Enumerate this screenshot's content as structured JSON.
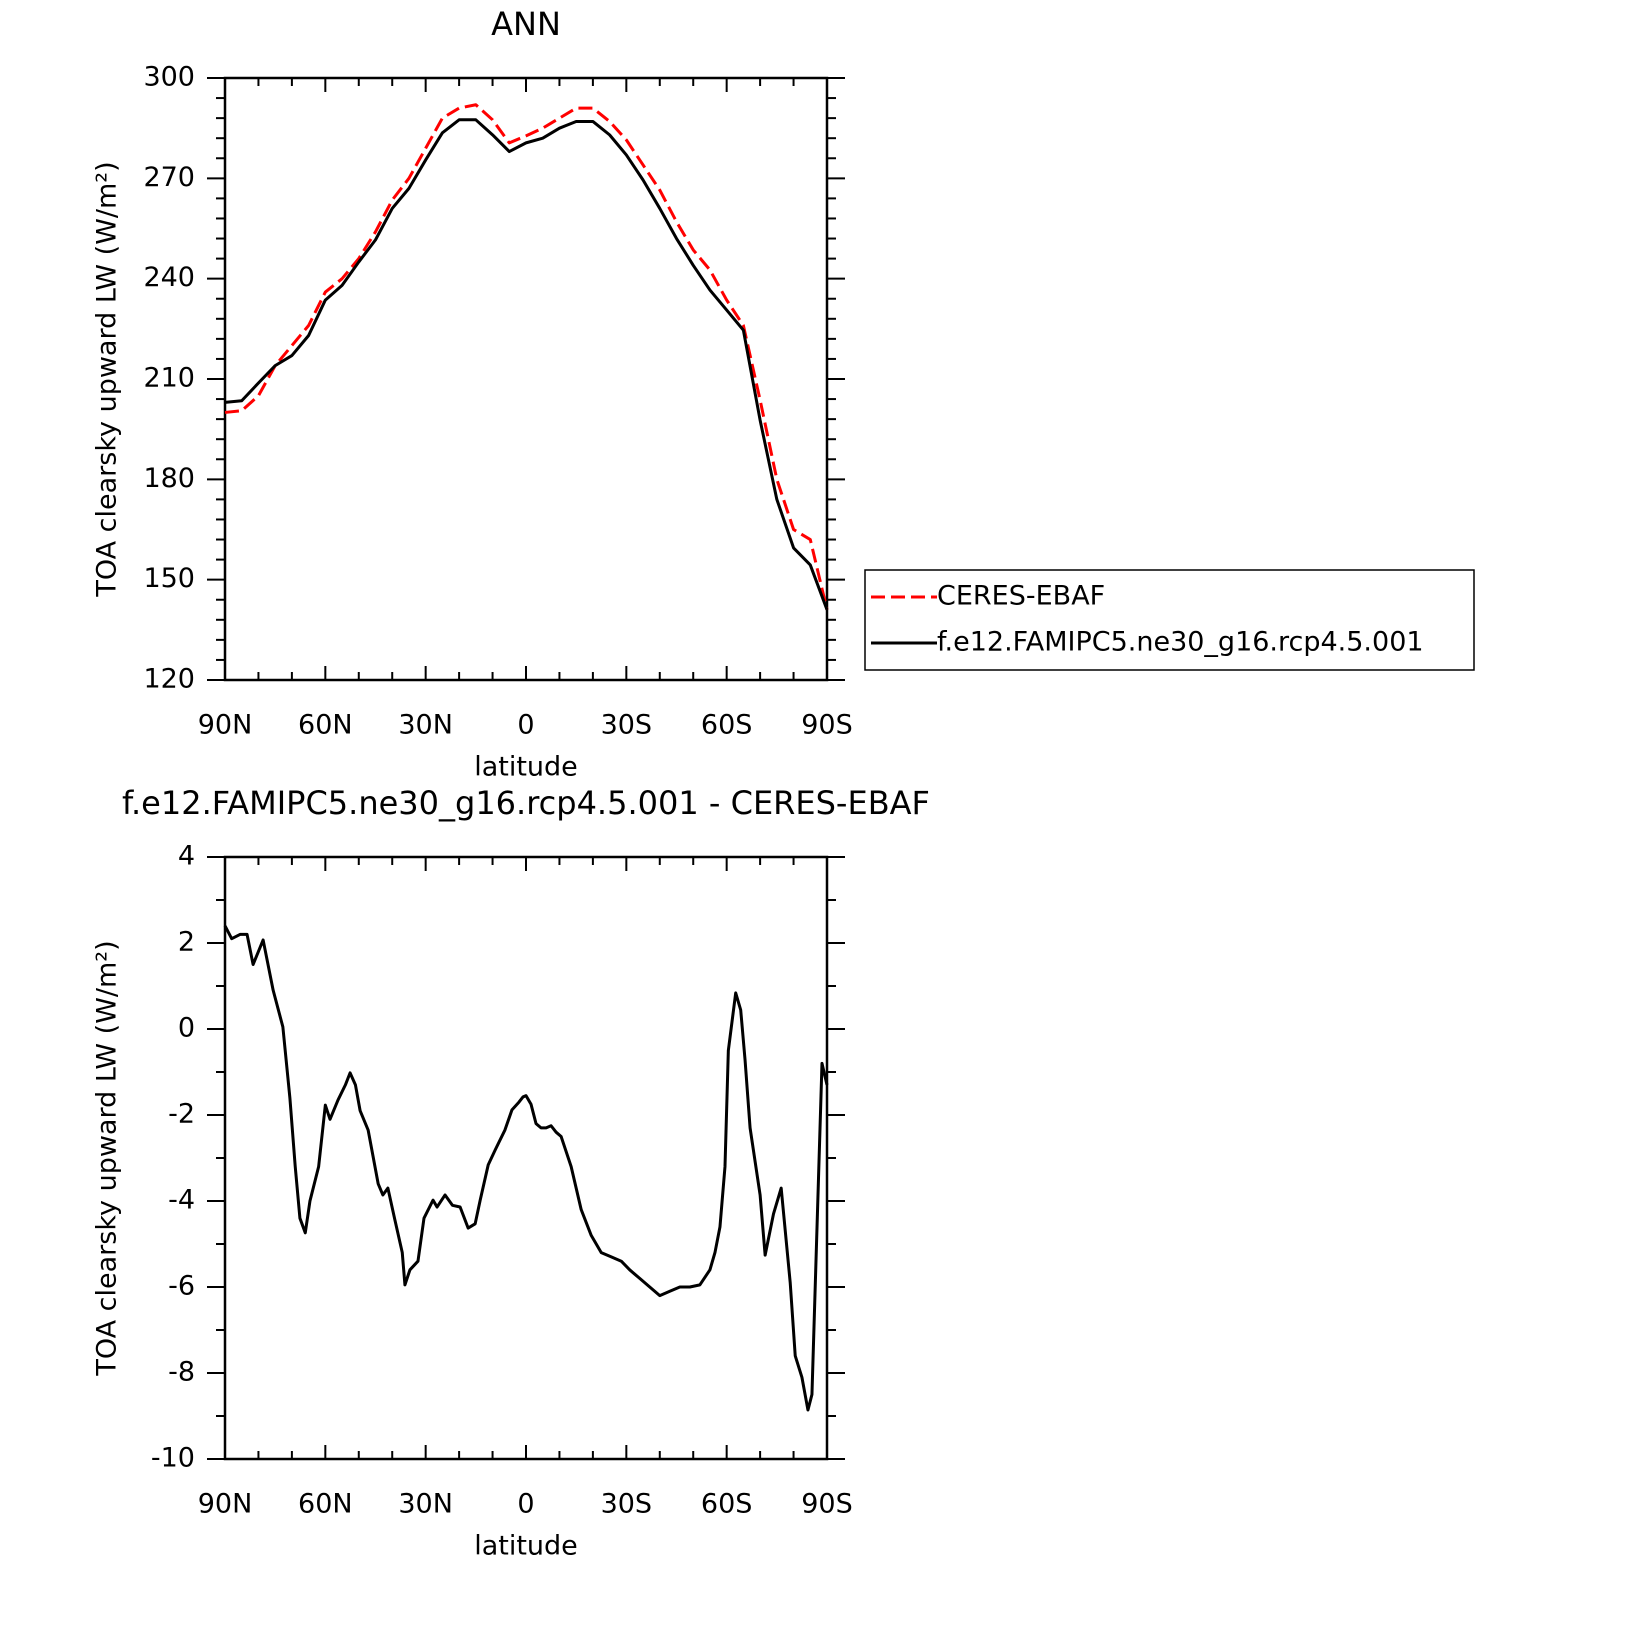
{
  "chart_data": [
    {
      "type": "line",
      "title": "ANN",
      "xlabel": "latitude",
      "ylabel": "TOA clearsky upward LW (W/m²)",
      "xlim": [
        90,
        -90
      ],
      "xticks": [
        {
          "value": 90,
          "label": "90N"
        },
        {
          "value": 60,
          "label": "60N"
        },
        {
          "value": 30,
          "label": "30N"
        },
        0,
        {
          "value": -30,
          "label": "30S"
        },
        {
          "value": -60,
          "label": "60S"
        },
        {
          "value": -90,
          "label": "90S"
        }
      ],
      "ylim": [
        120,
        300
      ],
      "yticks": [
        120,
        150,
        180,
        210,
        240,
        270,
        300
      ],
      "legend": "right",
      "x": [
        90,
        85,
        80,
        75,
        70,
        65,
        60,
        55,
        50,
        45,
        40,
        35,
        30,
        25,
        20,
        15,
        10,
        5,
        0,
        -5,
        -10,
        -15,
        -20,
        -25,
        -30,
        -35,
        -40,
        -45,
        -50,
        -55,
        -60,
        -65,
        -70,
        -75,
        -80,
        -85,
        -90
      ],
      "series": [
        {
          "name": "CERES-EBAF",
          "color": "#ff0000",
          "linestyle": "dashed",
          "values": [
            200,
            200.5,
            205,
            214,
            220,
            226,
            236,
            240,
            246,
            254,
            263.5,
            270,
            279,
            288,
            291,
            292,
            287.5,
            280.6,
            282.7,
            285,
            288,
            291,
            291,
            287,
            281.5,
            274,
            266.5,
            257,
            248.6,
            242.6,
            233.6,
            226,
            203.7,
            180,
            165,
            162,
            141
          ]
        },
        {
          "name": "f.e12.FAMIPC5.ne30_g16.rcp4.5.001",
          "color": "#000000",
          "linestyle": "solid",
          "values": [
            203,
            203.5,
            208.8,
            214,
            217,
            223,
            233.6,
            238,
            245,
            251.6,
            261,
            267,
            275.5,
            283.6,
            287.5,
            287.5,
            283,
            278,
            280.6,
            282,
            285,
            287,
            287,
            283,
            277,
            269.5,
            261,
            252,
            244,
            236.6,
            230.6,
            224.6,
            197.7,
            174,
            159.5,
            154.4,
            141
          ]
        }
      ]
    },
    {
      "type": "line",
      "title": "f.e12.FAMIPC5.ne30_g16.rcp4.5.001 - CERES-EBAF",
      "xlabel": "latitude",
      "ylabel": "TOA clearsky upward LW (W/m²)",
      "xlim": [
        90,
        -90
      ],
      "xticks": [
        {
          "value": 90,
          "label": "90N"
        },
        {
          "value": 60,
          "label": "60N"
        },
        {
          "value": 30,
          "label": "30N"
        },
        0,
        {
          "value": -30,
          "label": "30S"
        },
        {
          "value": -60,
          "label": "60S"
        },
        {
          "value": -90,
          "label": "90S"
        }
      ],
      "ylim": [
        -10,
        4
      ],
      "yticks": [
        -10,
        -8,
        -6,
        -4,
        -2,
        0,
        2,
        4
      ],
      "x": [
        90,
        88,
        85.5,
        83.4,
        81.6,
        78.6,
        75.6,
        72.7,
        70.6,
        69,
        67.6,
        66,
        64.6,
        62,
        60,
        58.6,
        56.2,
        54,
        52.6,
        51,
        49.6,
        47.2,
        44.2,
        42.8,
        41.3,
        39.2,
        37,
        36.2,
        34.7,
        32.3,
        30.5,
        27.8,
        26.6,
        24.2,
        22,
        19.7,
        17.3,
        15.2,
        13.7,
        11.3,
        9.2,
        6.3,
        4.2,
        2.1,
        0.9,
        0,
        -1.5,
        -3,
        -4.5,
        -6,
        -7.5,
        -9,
        -10.5,
        -13.5,
        -16.5,
        -19.5,
        -22.5,
        -25.5,
        -28.5,
        -31,
        -34,
        -37,
        -40,
        -43,
        -46,
        -49,
        -52,
        -55,
        -56.5,
        -58,
        -59.5,
        -60.5,
        -62.7,
        -64.2,
        -65.5,
        -67,
        -70,
        -71.5,
        -74,
        -76.3,
        -79,
        -80.5,
        -82.5,
        -84.3,
        -85.5,
        -88.5,
        -90
      ],
      "series": [
        {
          "name": "f.e12.FAMIPC5.ne30_g16.rcp4.5.001 - CERES-EBAF",
          "color": "#000000",
          "linestyle": "solid",
          "values": [
            2.4,
            2.1,
            2.2,
            2.2,
            1.5,
            2.07,
            0.9,
            0.05,
            -1.6,
            -3.2,
            -4.4,
            -4.74,
            -4.0,
            -3.2,
            -1.77,
            -2.1,
            -1.65,
            -1.3,
            -1.02,
            -1.3,
            -1.9,
            -2.35,
            -3.6,
            -3.86,
            -3.7,
            -4.44,
            -5.2,
            -5.95,
            -5.6,
            -5.4,
            -4.4,
            -3.98,
            -4.14,
            -3.86,
            -4.1,
            -4.14,
            -4.63,
            -4.53,
            -3.98,
            -3.16,
            -2.81,
            -2.35,
            -1.88,
            -1.7,
            -1.58,
            -1.55,
            -1.75,
            -2.2,
            -2.3,
            -2.3,
            -2.25,
            -2.4,
            -2.5,
            -3.2,
            -4.2,
            -4.8,
            -5.2,
            -5.3,
            -5.4,
            -5.6,
            -5.8,
            -6.0,
            -6.2,
            -6.1,
            -6.0,
            -6.0,
            -5.95,
            -5.6,
            -5.2,
            -4.6,
            -3.2,
            -0.5,
            0.84,
            0.44,
            -0.72,
            -2.3,
            -3.86,
            -5.26,
            -4.3,
            -3.7,
            -5.9,
            -7.6,
            -8.1,
            -8.86,
            -8.5,
            -0.8,
            -1.3
          ]
        }
      ]
    }
  ]
}
